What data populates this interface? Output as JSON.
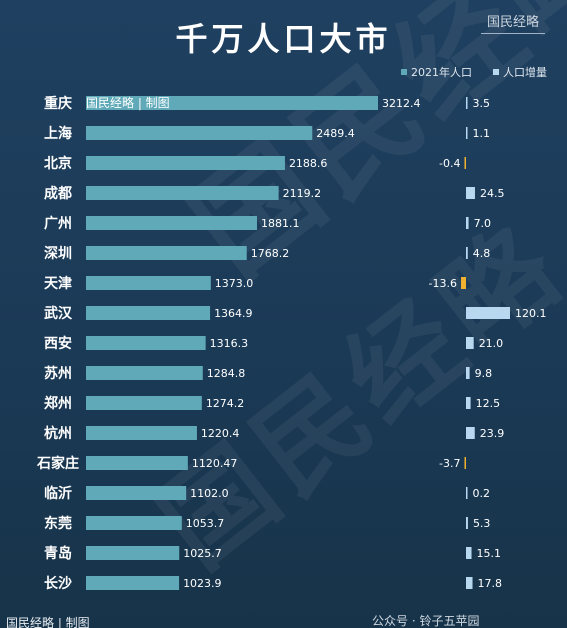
{
  "header": {
    "title": "千万人口大市",
    "brand": "国民经略",
    "inline_watermark": "国民经略 | 制图",
    "bottom_brand": "国民经略 | 制图",
    "footer_text": "公众号 · 铃子五苹园",
    "watermark_big": "国民经略"
  },
  "legend": {
    "series1": "2021年人口",
    "series2": "人口增量"
  },
  "colors": {
    "population_bar": "#5fa9b8",
    "increase_positive": "#b8d8f0",
    "increase_negative": "#f0b030"
  },
  "chart_data": {
    "type": "bar",
    "orientation": "horizontal",
    "title": "千万人口大市",
    "categories": [
      "重庆",
      "上海",
      "北京",
      "成都",
      "广州",
      "深圳",
      "天津",
      "武汉",
      "西安",
      "苏州",
      "郑州",
      "杭州",
      "石家庄",
      "临沂",
      "东莞",
      "青岛",
      "长沙"
    ],
    "series": [
      {
        "name": "2021年人口",
        "values": [
          3212.4,
          2489.4,
          2188.6,
          2119.2,
          1881.1,
          1768.2,
          1373.0,
          1364.9,
          1316.3,
          1284.8,
          1274.2,
          1220.4,
          1120.47,
          1102.0,
          1053.7,
          1025.7,
          1023.9
        ]
      },
      {
        "name": "人口增量",
        "values": [
          3.5,
          1.1,
          -0.4,
          24.5,
          7.0,
          4.8,
          -13.6,
          120.1,
          21.0,
          9.8,
          12.5,
          23.9,
          -3.7,
          0.2,
          5.3,
          15.1,
          17.8
        ]
      }
    ],
    "population_labels": [
      "3212.4",
      "2489.4",
      "2188.6",
      "2119.2",
      "1881.1",
      "1768.2",
      "1373.0",
      "1364.9",
      "1316.3",
      "1284.8",
      "1274.2",
      "1220.4",
      "1120.47",
      "1102.0",
      "1053.7",
      "1025.7",
      "1023.9"
    ],
    "increase_labels": [
      "3.5",
      "1.1",
      "-0.4",
      "24.5",
      "7.0",
      "4.8",
      "-13.6",
      "120.1",
      "21.0",
      "9.8",
      "12.5",
      "23.9",
      "-3.7",
      "0.2",
      "5.3",
      "15.1",
      "17.8"
    ],
    "legend_position": "top-right",
    "grid": false
  }
}
